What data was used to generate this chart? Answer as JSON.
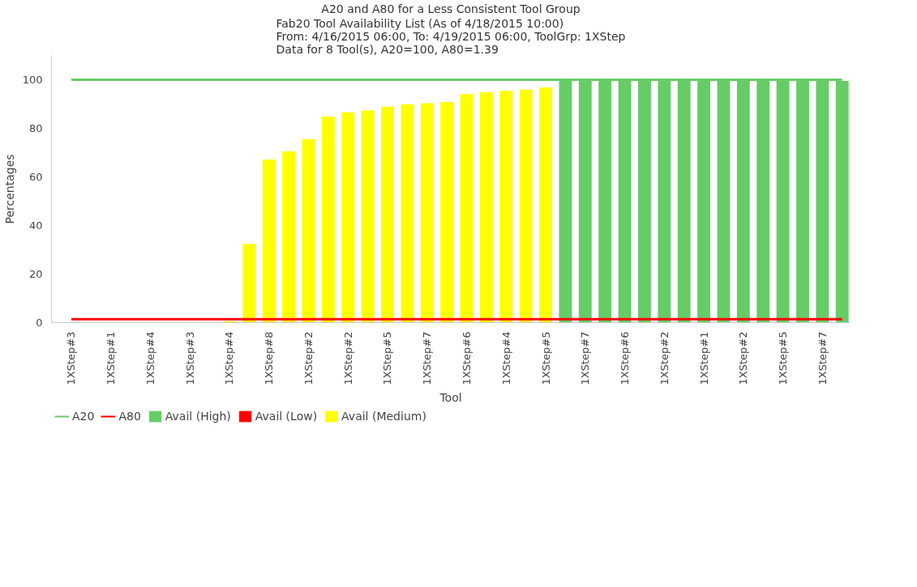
{
  "chart_data": {
    "type": "bar",
    "title": "A20 and A80 for a Less Consistent Tool Group",
    "subtitle": "Fab20 Tool Availability List (As of 4/18/2015 10:00)\nFrom: 4/16/2015 06:00, To: 4/19/2015 06:00, ToolGrp: 1XStep\nData for 8 Tool(s), A20=100, A80=1.39",
    "xlabel": "Tool",
    "ylabel": "Percentages",
    "categories": [
      "1XStep#3",
      null,
      "1XStep#1",
      null,
      "1XStep#4",
      null,
      "1XStep#3",
      null,
      "1XStep#4",
      null,
      "1XStep#8",
      null,
      "1XStep#2",
      null,
      "1XStep#2",
      null,
      "1XStep#5",
      null,
      "1XStep#7",
      null,
      "1XStep#6",
      null,
      "1XStep#4",
      null,
      "1XStep#5",
      null,
      "1XStep#7",
      null,
      "1XStep#6",
      null,
      "1XStep#2",
      null,
      "1XStep#1",
      null,
      "1XStep#2",
      null,
      "1XStep#5",
      null,
      "1XStep#7",
      null
    ],
    "ylim": [
      0,
      110
    ],
    "yticks": [
      0,
      20,
      40,
      60,
      80,
      100
    ],
    "grid": false,
    "legend": "bottom left",
    "series": [
      {
        "name": "A20",
        "type": "line",
        "color": "#66cc66",
        "values": [
          100,
          100,
          100,
          100,
          100,
          100,
          100,
          100,
          100,
          100,
          100,
          100,
          100,
          100,
          100,
          100,
          100,
          100,
          100,
          100,
          100,
          100,
          100,
          100,
          100,
          100,
          100,
          100,
          100,
          100,
          100,
          100,
          100,
          100,
          100,
          100,
          100,
          100,
          100,
          100
        ]
      },
      {
        "name": "A80",
        "type": "line",
        "color": "#ff0000",
        "values": [
          1.39,
          1.39,
          1.39,
          1.39,
          1.39,
          1.39,
          1.39,
          1.39,
          1.39,
          1.39,
          1.39,
          1.39,
          1.39,
          1.39,
          1.39,
          1.39,
          1.39,
          1.39,
          1.39,
          1.39,
          1.39,
          1.39,
          1.39,
          1.39,
          1.39,
          1.39,
          1.39,
          1.39,
          1.39,
          1.39,
          1.39,
          1.39,
          1.39,
          1.39,
          1.39,
          1.39,
          1.39,
          1.39,
          1.39,
          1.39
        ]
      },
      {
        "name": "Avail (High)",
        "color": "#66cc66",
        "values": [
          null,
          null,
          null,
          null,
          null,
          null,
          null,
          null,
          null,
          null,
          null,
          null,
          null,
          null,
          null,
          null,
          null,
          null,
          null,
          null,
          null,
          null,
          null,
          null,
          null,
          99.5,
          99.5,
          99.5,
          99.5,
          99.5,
          99.5,
          99.5,
          99.5,
          99.5,
          99.5,
          99.5,
          99.5,
          99.5,
          99.5,
          99.5
        ]
      },
      {
        "name": "Avail (Low)",
        "color": "#ff0000",
        "values": [
          null,
          null,
          null,
          null,
          null,
          null,
          null,
          null,
          null,
          null,
          null,
          null,
          null,
          null,
          null,
          null,
          null,
          null,
          null,
          null,
          null,
          null,
          null,
          null,
          null,
          null,
          null,
          null,
          null,
          null,
          null,
          null,
          null,
          null,
          null,
          null,
          null,
          null,
          null,
          null
        ]
      },
      {
        "name": "Avail (Medium)",
        "color": "#ffff00",
        "values": [
          0,
          0,
          0,
          0,
          0,
          0,
          0,
          0,
          0.6,
          32.4,
          67.2,
          70.5,
          75.5,
          84.8,
          86.6,
          87.3,
          88.9,
          89.9,
          90.3,
          90.8,
          94.1,
          94.8,
          95.4,
          95.9,
          96.8,
          null,
          null,
          null,
          null,
          null,
          null,
          null,
          null,
          null,
          null,
          null,
          null,
          null,
          null,
          null
        ]
      }
    ]
  }
}
